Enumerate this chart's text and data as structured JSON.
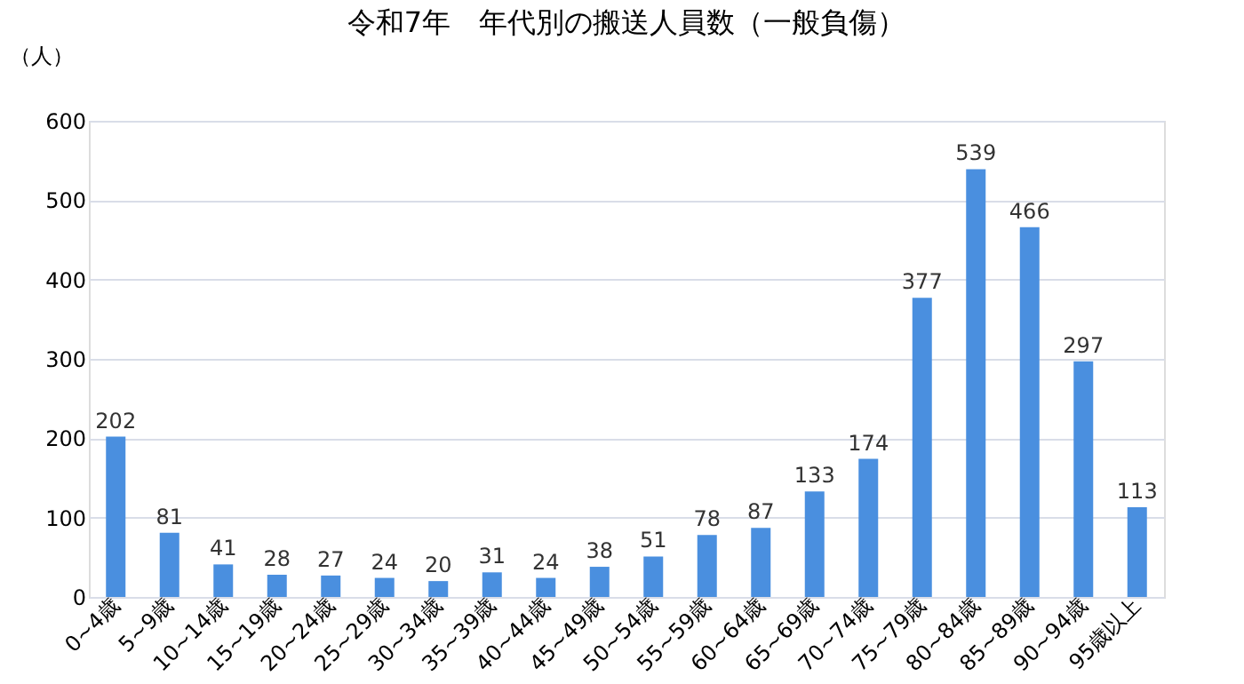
{
  "chart_data": {
    "type": "bar",
    "title": "令和7年　年代別の搬送人員数（一般負傷）",
    "ylabel": "（人）",
    "categories": [
      "0~4歳",
      "5~9歳",
      "10~14歳",
      "15~19歳",
      "20~24歳",
      "25~29歳",
      "30~34歳",
      "35~39歳",
      "40~44歳",
      "45~49歳",
      "50~54歳",
      "55~59歳",
      "60~64歳",
      "65~69歳",
      "70~74歳",
      "75~79歳",
      "80~84歳",
      "85~89歳",
      "90~94歳",
      "95歳以上"
    ],
    "values": [
      202,
      81,
      41,
      28,
      27,
      24,
      20,
      31,
      24,
      38,
      51,
      78,
      87,
      133,
      174,
      377,
      539,
      466,
      297,
      113
    ],
    "color": "#4a8fdf",
    "ylim": [
      0,
      600
    ],
    "yticks": [
      0,
      100,
      200,
      300,
      400,
      500,
      600
    ],
    "grid": "y",
    "data_labels": true
  }
}
